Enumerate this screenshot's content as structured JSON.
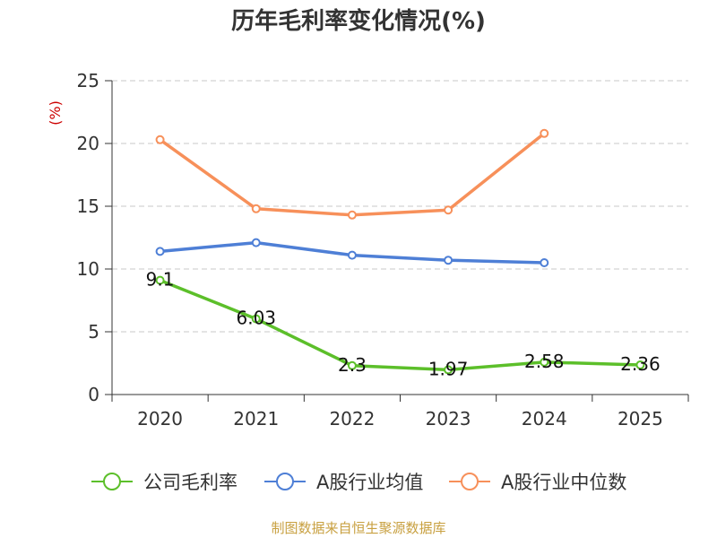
{
  "chart_data": {
    "type": "line",
    "title": "历年毛利率变化情况(%)",
    "unit_label": "(%)",
    "categories": [
      "2020",
      "2021",
      "2022",
      "2023",
      "2024",
      "2025"
    ],
    "ylim": [
      0,
      25
    ],
    "yticks": [
      0,
      5,
      10,
      15,
      20,
      25
    ],
    "grid": true,
    "legend_position": "bottom",
    "series": [
      {
        "name": "公司毛利率",
        "color": "#5cbf2a",
        "values": [
          9.1,
          6.03,
          2.3,
          1.97,
          2.58,
          2.36
        ],
        "labels": [
          "9.1",
          "6.03",
          "2.3",
          "1.97",
          "2.58",
          "2.36"
        ]
      },
      {
        "name": "A股行业均值",
        "color": "#4e7fd6",
        "values": [
          11.4,
          12.1,
          11.1,
          10.7,
          10.5,
          null
        ]
      },
      {
        "name": "A股行业中位数",
        "color": "#f7905a",
        "values": [
          20.3,
          14.8,
          14.3,
          14.7,
          20.8,
          null
        ]
      }
    ]
  },
  "source": "制图数据来自恒生聚源数据库"
}
